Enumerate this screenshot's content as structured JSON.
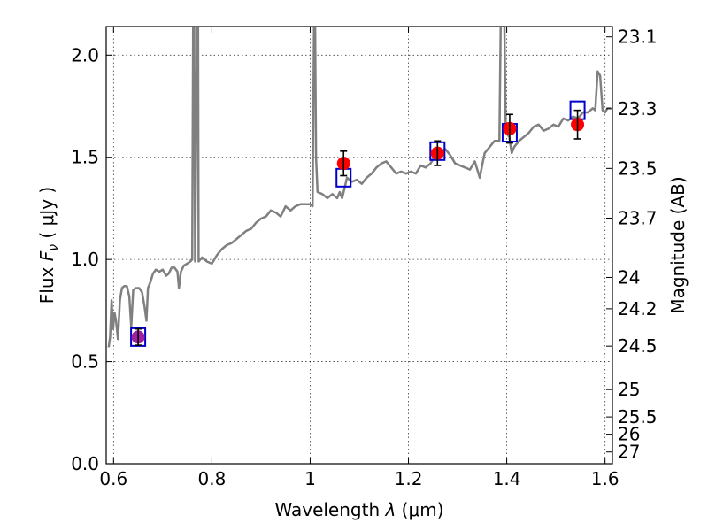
{
  "chart_data": {
    "type": "line",
    "xlabel": "Wavelength  λ (μm)",
    "ylabel": "Flux  Fν  ( μJy )",
    "ylabel_parts": {
      "prefix": "Flux  ",
      "symbol": "F",
      "subscript": "ν",
      "unit": "  ( μJy )"
    },
    "xlabel_parts": {
      "prefix": "Wavelength  ",
      "symbol": "λ",
      "unit": " (μm)"
    },
    "right_ylabel": "Magnitude (AB)",
    "xlim": [
      0.585,
      1.615
    ],
    "ylim": [
      0.0,
      2.14
    ],
    "grid": true,
    "x_ticks": [
      {
        "value": 0.6,
        "label": "0.6"
      },
      {
        "value": 0.8,
        "label": "0.8"
      },
      {
        "value": 1.0,
        "label": "1"
      },
      {
        "value": 1.2,
        "label": "1.2"
      },
      {
        "value": 1.4,
        "label": "1.4"
      },
      {
        "value": 1.6,
        "label": "1.6"
      }
    ],
    "y_ticks": [
      {
        "value": 0.0,
        "label": "0.0"
      },
      {
        "value": 0.5,
        "label": "0.5"
      },
      {
        "value": 1.0,
        "label": "1.0"
      },
      {
        "value": 1.5,
        "label": "1.5"
      },
      {
        "value": 2.0,
        "label": "2.0"
      }
    ],
    "right_ticks": [
      {
        "mag": 23.1,
        "label": "23.1"
      },
      {
        "mag": 23.3,
        "label": "23.3"
      },
      {
        "mag": 23.5,
        "label": "23.5"
      },
      {
        "mag": 23.7,
        "label": "23.7"
      },
      {
        "mag": 24.0,
        "label": "24"
      },
      {
        "mag": 24.2,
        "label": "24.2"
      },
      {
        "mag": 24.5,
        "label": "24.5"
      },
      {
        "mag": 25.0,
        "label": "25"
      },
      {
        "mag": 25.5,
        "label": "25.5"
      },
      {
        "mag": 26.0,
        "label": "26"
      },
      {
        "mag": 27.0,
        "label": "27"
      }
    ],
    "colors": {
      "spectrum": "#808080",
      "observed": "#ff0000",
      "model_box": "#0000cc",
      "error_bar": "#000000",
      "purple_marker": "#a020a0"
    },
    "series": [
      {
        "name": "model_spectrum",
        "type": "line",
        "points": [
          [
            0.59,
            0.57
          ],
          [
            0.593,
            0.62
          ],
          [
            0.596,
            0.8
          ],
          [
            0.599,
            0.66
          ],
          [
            0.602,
            0.74
          ],
          [
            0.605,
            0.7
          ],
          [
            0.609,
            0.61
          ],
          [
            0.613,
            0.8
          ],
          [
            0.617,
            0.86
          ],
          [
            0.622,
            0.87
          ],
          [
            0.627,
            0.87
          ],
          [
            0.632,
            0.82
          ],
          [
            0.636,
            0.67
          ],
          [
            0.64,
            0.85
          ],
          [
            0.645,
            0.86
          ],
          [
            0.652,
            0.86
          ],
          [
            0.658,
            0.84
          ],
          [
            0.663,
            0.77
          ],
          [
            0.667,
            0.7
          ],
          [
            0.67,
            0.86
          ],
          [
            0.675,
            0.89
          ],
          [
            0.68,
            0.93
          ],
          [
            0.686,
            0.95
          ],
          [
            0.693,
            0.94
          ],
          [
            0.7,
            0.95
          ],
          [
            0.707,
            0.92
          ],
          [
            0.712,
            0.93
          ],
          [
            0.718,
            0.96
          ],
          [
            0.724,
            0.96
          ],
          [
            0.73,
            0.94
          ],
          [
            0.733,
            0.86
          ],
          [
            0.737,
            0.94
          ],
          [
            0.743,
            0.97
          ],
          [
            0.75,
            0.98
          ],
          [
            0.756,
            0.99
          ],
          [
            0.76,
            1.0
          ],
          [
            0.762,
            2.2
          ],
          [
            0.764,
            2.2
          ],
          [
            0.766,
            0.99
          ],
          [
            0.77,
            2.2
          ],
          [
            0.772,
            2.2
          ],
          [
            0.773,
            0.99
          ],
          [
            0.78,
            1.01
          ],
          [
            0.79,
            0.99
          ],
          [
            0.8,
            0.98
          ],
          [
            0.81,
            1.02
          ],
          [
            0.82,
            1.05
          ],
          [
            0.83,
            1.07
          ],
          [
            0.84,
            1.08
          ],
          [
            0.85,
            1.1
          ],
          [
            0.86,
            1.12
          ],
          [
            0.87,
            1.14
          ],
          [
            0.88,
            1.15
          ],
          [
            0.89,
            1.18
          ],
          [
            0.9,
            1.2
          ],
          [
            0.91,
            1.21
          ],
          [
            0.92,
            1.24
          ],
          [
            0.93,
            1.23
          ],
          [
            0.94,
            1.21
          ],
          [
            0.95,
            1.26
          ],
          [
            0.96,
            1.24
          ],
          [
            0.97,
            1.26
          ],
          [
            0.98,
            1.27
          ],
          [
            0.99,
            1.27
          ],
          [
            1.0,
            1.27
          ],
          [
            1.005,
            1.26
          ],
          [
            1.008,
            2.2
          ],
          [
            1.01,
            2.2
          ],
          [
            1.012,
            1.5
          ],
          [
            1.015,
            1.33
          ],
          [
            1.025,
            1.32
          ],
          [
            1.035,
            1.3
          ],
          [
            1.045,
            1.32
          ],
          [
            1.055,
            1.3
          ],
          [
            1.06,
            1.33
          ],
          [
            1.065,
            1.3
          ],
          [
            1.075,
            1.4
          ],
          [
            1.085,
            1.38
          ],
          [
            1.095,
            1.39
          ],
          [
            1.105,
            1.37
          ],
          [
            1.115,
            1.4
          ],
          [
            1.125,
            1.42
          ],
          [
            1.135,
            1.45
          ],
          [
            1.145,
            1.47
          ],
          [
            1.155,
            1.48
          ],
          [
            1.165,
            1.45
          ],
          [
            1.175,
            1.42
          ],
          [
            1.185,
            1.43
          ],
          [
            1.195,
            1.42
          ],
          [
            1.205,
            1.43
          ],
          [
            1.215,
            1.42
          ],
          [
            1.225,
            1.46
          ],
          [
            1.235,
            1.45
          ],
          [
            1.245,
            1.47
          ],
          [
            1.255,
            1.51
          ],
          [
            1.265,
            1.53
          ],
          [
            1.275,
            1.54
          ],
          [
            1.285,
            1.51
          ],
          [
            1.295,
            1.47
          ],
          [
            1.305,
            1.46
          ],
          [
            1.315,
            1.45
          ],
          [
            1.325,
            1.44
          ],
          [
            1.335,
            1.48
          ],
          [
            1.345,
            1.4
          ],
          [
            1.35,
            1.46
          ],
          [
            1.355,
            1.52
          ],
          [
            1.365,
            1.55
          ],
          [
            1.375,
            1.58
          ],
          [
            1.385,
            1.58
          ],
          [
            1.388,
            2.2
          ],
          [
            1.395,
            2.2
          ],
          [
            1.398,
            1.62
          ],
          [
            1.405,
            1.6
          ],
          [
            1.41,
            1.52
          ],
          [
            1.415,
            1.55
          ],
          [
            1.425,
            1.58
          ],
          [
            1.435,
            1.6
          ],
          [
            1.445,
            1.62
          ],
          [
            1.455,
            1.65
          ],
          [
            1.465,
            1.66
          ],
          [
            1.475,
            1.63
          ],
          [
            1.485,
            1.64
          ],
          [
            1.495,
            1.66
          ],
          [
            1.505,
            1.65
          ],
          [
            1.515,
            1.69
          ],
          [
            1.525,
            1.68
          ],
          [
            1.535,
            1.7
          ],
          [
            1.545,
            1.69
          ],
          [
            1.555,
            1.72
          ],
          [
            1.565,
            1.72
          ],
          [
            1.575,
            1.74
          ],
          [
            1.58,
            1.73
          ],
          [
            1.585,
            1.92
          ],
          [
            1.59,
            1.9
          ],
          [
            1.595,
            1.73
          ],
          [
            1.6,
            1.72
          ],
          [
            1.605,
            1.74
          ],
          [
            1.612,
            1.74
          ]
        ]
      },
      {
        "name": "observed_photometry",
        "type": "scatter",
        "points": [
          {
            "x": 0.65,
            "y": 0.62,
            "err": 0.04
          },
          {
            "x": 1.068,
            "y": 1.47,
            "err": 0.06
          },
          {
            "x": 1.259,
            "y": 1.52,
            "err": 0.06
          },
          {
            "x": 1.406,
            "y": 1.64,
            "err": 0.07
          },
          {
            "x": 1.544,
            "y": 1.66,
            "err": 0.07
          }
        ]
      },
      {
        "name": "model_photometry",
        "type": "scatter",
        "points": [
          {
            "x": 0.65,
            "y": 0.62
          },
          {
            "x": 1.068,
            "y": 1.4
          },
          {
            "x": 1.259,
            "y": 1.53
          },
          {
            "x": 1.406,
            "y": 1.62
          },
          {
            "x": 1.544,
            "y": 1.73
          }
        ]
      }
    ]
  }
}
